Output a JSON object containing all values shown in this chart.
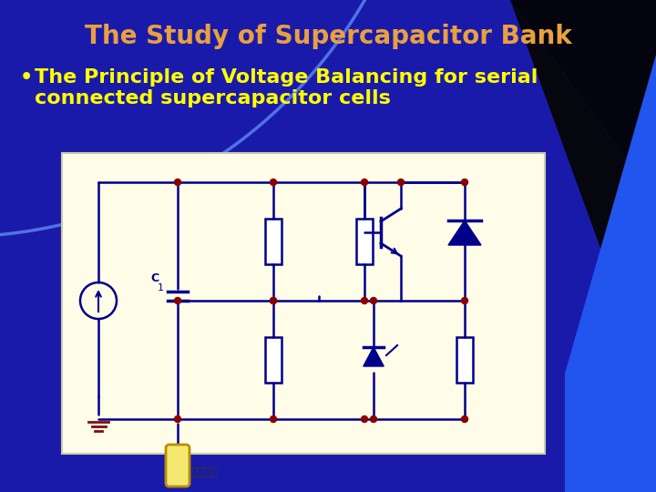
{
  "title": "The Study of Supercapacitor Bank",
  "title_color": "#E8A040",
  "title_fontsize": 20,
  "bullet_text_line1": "The Principle of Voltage Balancing for serial",
  "bullet_text_line2": "connected supercapacitor cells",
  "bullet_color": "#FFFF00",
  "bullet_fontsize": 16,
  "bg_color": "#1a1aaa",
  "bg_dark": "#050518",
  "arc_color": "#5599ee",
  "blue_wedge": "#2255ee",
  "circuit_bg": "#FFFCE8",
  "wire_color": "#00008B",
  "node_color": "#8B0000",
  "component_color": "#00008B",
  "ground_color": "#7B1010",
  "battery_fill": "#F5E870",
  "battery_border": "#B89000",
  "chinese_text": "按下一元",
  "label_C": "C",
  "label_1": "1"
}
